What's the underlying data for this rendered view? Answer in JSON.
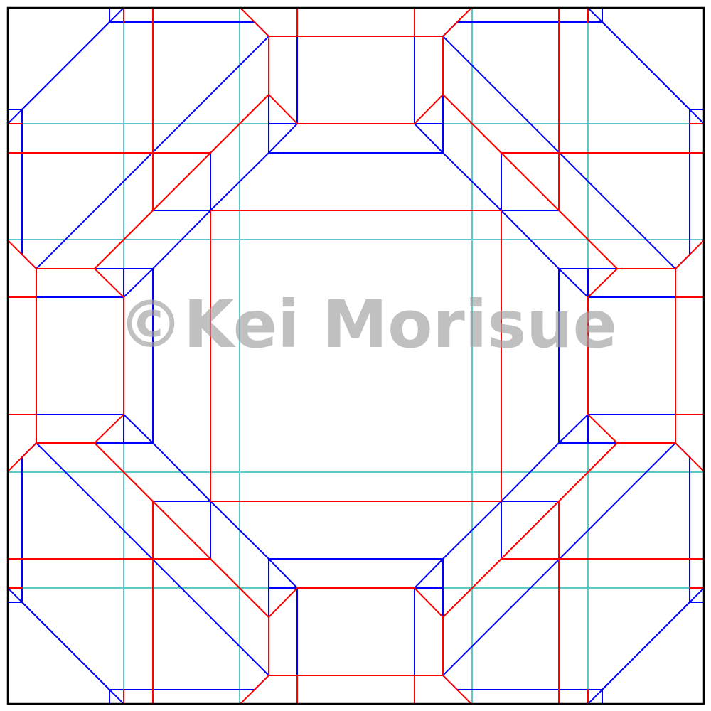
{
  "watermark": {
    "text": "©Kei Morisue"
  },
  "colors": {
    "border": "#000000",
    "mountain": "#ff0000",
    "valley": "#0000ff",
    "auxiliary": "#5fc9c9",
    "watermark": "#9e9e9e"
  }
}
